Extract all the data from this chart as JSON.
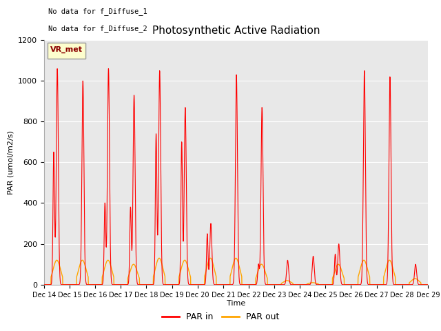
{
  "title": "Photosynthetic Active Radiation",
  "ylabel": "PAR (umol/m2/s)",
  "xlabel": "Time",
  "legend_label1": "PAR in",
  "legend_label2": "PAR out",
  "color_par_in": "#ff0000",
  "color_par_out": "#ffa500",
  "annotation_text1": "No data for f_Diffuse_1",
  "annotation_text2": "No data for f_Diffuse_2",
  "legend_box_label": "VR_met",
  "ylim": [
    0,
    1200
  ],
  "bg_color": "#e8e8e8",
  "n_days": 15,
  "start_day": 14,
  "day_peaks_in": [
    1060,
    1000,
    1060,
    930,
    1050,
    870,
    300,
    1030,
    870,
    120,
    140,
    200,
    1050,
    1020,
    100
  ],
  "day_peaks_in2": [
    650,
    0,
    400,
    380,
    740,
    700,
    250,
    0,
    100,
    0,
    0,
    150,
    0,
    0,
    0
  ],
  "day_peaks_out": [
    120,
    120,
    120,
    100,
    130,
    120,
    130,
    130,
    100,
    20,
    10,
    100,
    120,
    120,
    30
  ]
}
